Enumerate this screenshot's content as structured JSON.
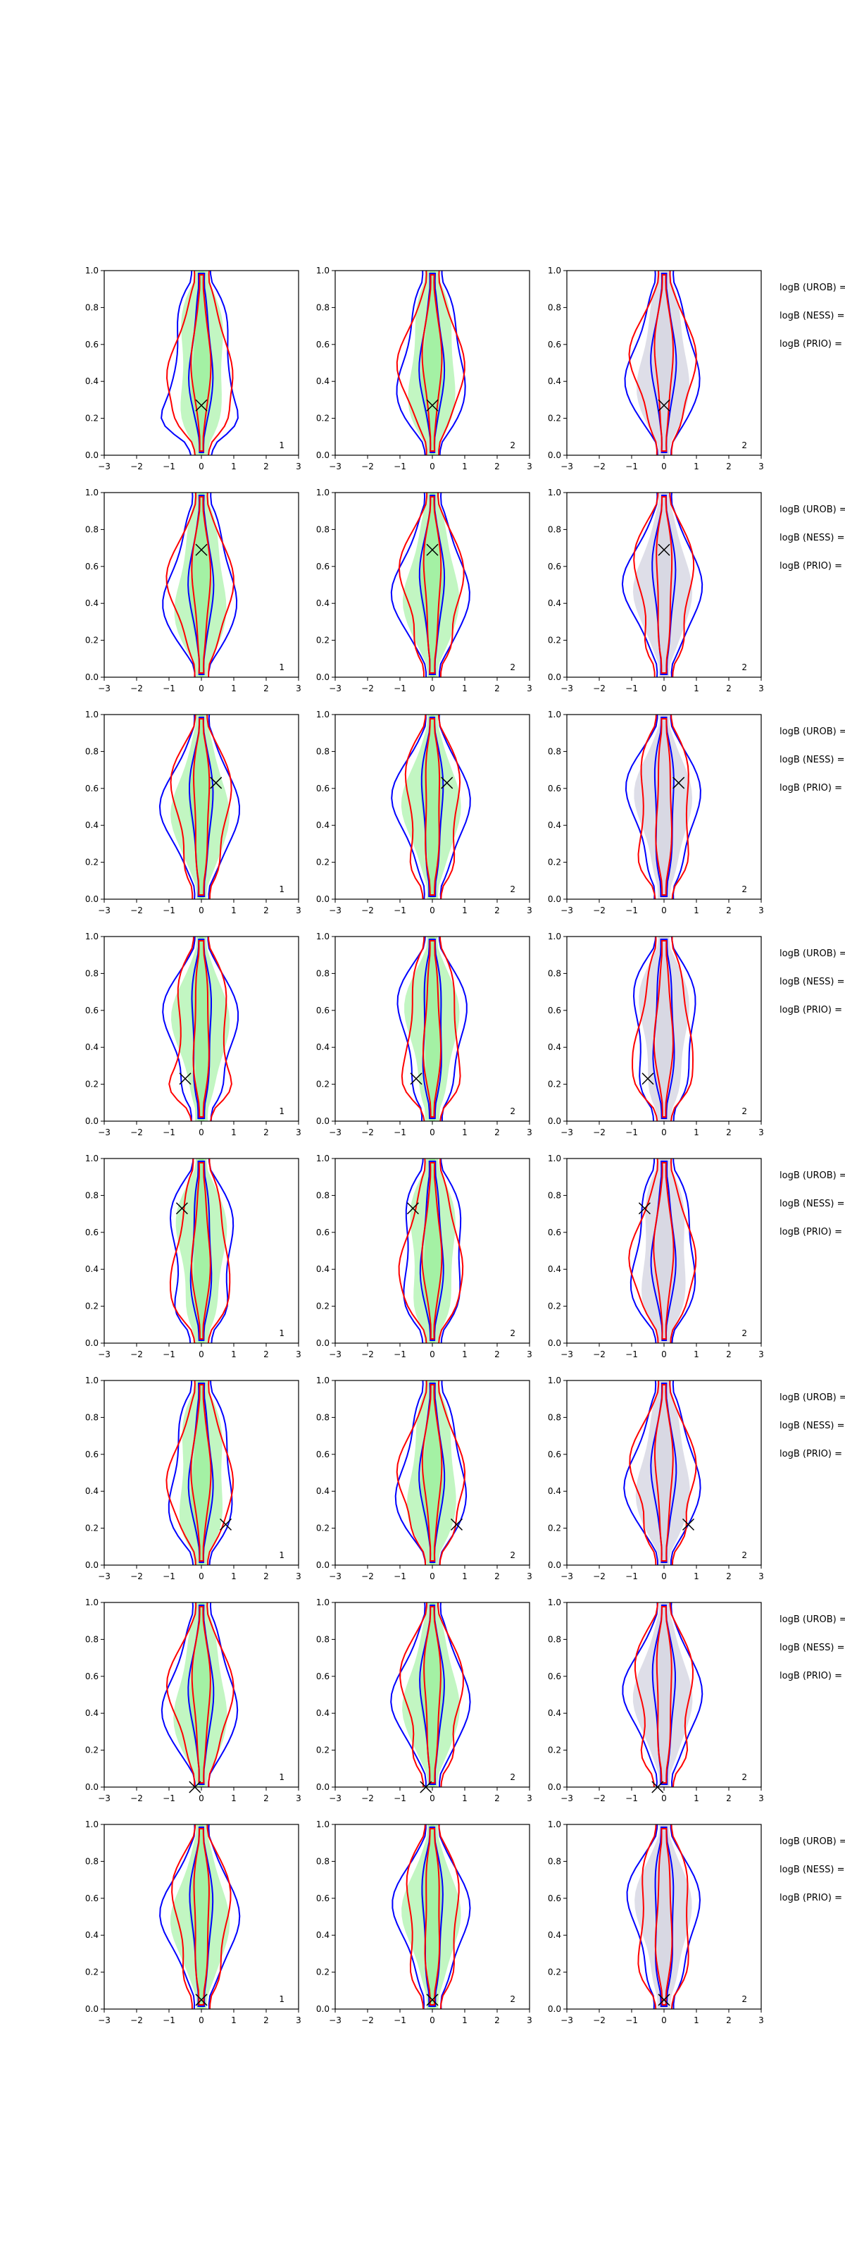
{
  "figure": {
    "x_ticks": [
      "−3",
      "−2",
      "−1",
      "0",
      "1",
      "2",
      "3"
    ],
    "y_ticks": [
      "0.0",
      "0.2",
      "0.4",
      "0.6",
      "0.8",
      "1.0"
    ],
    "xlim": [
      -3,
      3
    ],
    "ylim": [
      0,
      1
    ],
    "colors": {
      "blue_contour": "#0000ff",
      "red_contour": "#ff0000",
      "green_fill": "#90ee90",
      "grey_fill": "#d3d3e0",
      "marker": "#000000"
    },
    "side_labels": [
      "logB (UROB) =",
      "logB (NESS) =",
      "logB (PRIO) ="
    ]
  },
  "chart_data": {
    "type": "contour-grid",
    "rows": [
      {
        "marker": {
          "x": 0.0,
          "y": 0.27
        },
        "panels": [
          {
            "fill": "green",
            "corner_label": "1",
            "red_bulge": 0.7,
            "blue_bulge": 0.8
          },
          {
            "fill": "green",
            "corner_label": "2",
            "red_bulge": 0.2,
            "blue_bulge": 0.1
          },
          {
            "fill": "grey",
            "corner_label": "2",
            "red_bulge": 0.3,
            "blue_bulge": 0.1
          }
        ]
      },
      {
        "marker": {
          "x": 0.0,
          "y": 0.69
        },
        "panels": [
          {
            "fill": "green",
            "corner_label": "1",
            "red_bulge": 0.2,
            "blue_bulge": 0.1
          },
          {
            "fill": "green",
            "corner_label": "2",
            "red_bulge": 0.4,
            "blue_bulge": 0.1
          },
          {
            "fill": "grey",
            "corner_label": "2",
            "red_bulge": 0.3,
            "blue_bulge": 0.1
          }
        ]
      },
      {
        "marker": {
          "x": 0.45,
          "y": 0.63
        },
        "panels": [
          {
            "fill": "green",
            "corner_label": "1",
            "red_bulge": 0.2,
            "blue_bulge": 0.1
          },
          {
            "fill": "green",
            "corner_label": "2",
            "red_bulge": 0.3,
            "blue_bulge": 0.1
          },
          {
            "fill": "grey",
            "corner_label": "2",
            "red_bulge": 0.3,
            "blue_bulge": 0.1
          }
        ]
      },
      {
        "marker": {
          "x": -0.5,
          "y": 0.23
        },
        "panels": [
          {
            "fill": "green",
            "corner_label": "1",
            "red_bulge": 0.8,
            "blue_bulge": 0.3
          },
          {
            "fill": "green",
            "corner_label": "2",
            "red_bulge": 0.5,
            "blue_bulge": 0.1
          },
          {
            "fill": "grey",
            "corner_label": "2",
            "red_bulge": 0.5,
            "blue_bulge": 0.1
          }
        ]
      },
      {
        "marker": {
          "x": -0.6,
          "y": 0.73
        },
        "panels": [
          {
            "fill": "green",
            "corner_label": "1",
            "red_bulge": 0.4,
            "blue_bulge": 0.3
          },
          {
            "fill": "green",
            "corner_label": "2",
            "red_bulge": 0.4,
            "blue_bulge": 0.1
          },
          {
            "fill": "grey",
            "corner_label": "2",
            "red_bulge": 0.4,
            "blue_bulge": 0.1
          }
        ]
      },
      {
        "marker": {
          "x": 0.75,
          "y": 0.22
        },
        "panels": [
          {
            "fill": "green",
            "corner_label": "1",
            "red_bulge": 0.3,
            "blue_bulge": 0.1
          },
          {
            "fill": "green",
            "corner_label": "2",
            "red_bulge": 0.6,
            "blue_bulge": 0.1
          },
          {
            "fill": "grey",
            "corner_label": "2",
            "red_bulge": 0.6,
            "blue_bulge": 0.1
          }
        ]
      },
      {
        "marker": {
          "x": -0.2,
          "y": 0.0
        },
        "panels": [
          {
            "fill": "green",
            "corner_label": "1",
            "red_bulge": 0.2,
            "blue_bulge": 0.1
          },
          {
            "fill": "green",
            "corner_label": "2",
            "red_bulge": 0.5,
            "blue_bulge": 0.1
          },
          {
            "fill": "grey",
            "corner_label": "2",
            "red_bulge": 0.5,
            "blue_bulge": 0.1
          }
        ]
      },
      {
        "marker": {
          "x": 0.0,
          "y": 0.05
        },
        "panels": [
          {
            "fill": "green",
            "corner_label": "1",
            "red_bulge": 0.2,
            "blue_bulge": 0.1
          },
          {
            "fill": "green",
            "corner_label": "2",
            "red_bulge": 0.2,
            "blue_bulge": 0.1
          },
          {
            "fill": "grey",
            "corner_label": "2",
            "red_bulge": 0.2,
            "blue_bulge": 0.1
          }
        ]
      }
    ]
  }
}
